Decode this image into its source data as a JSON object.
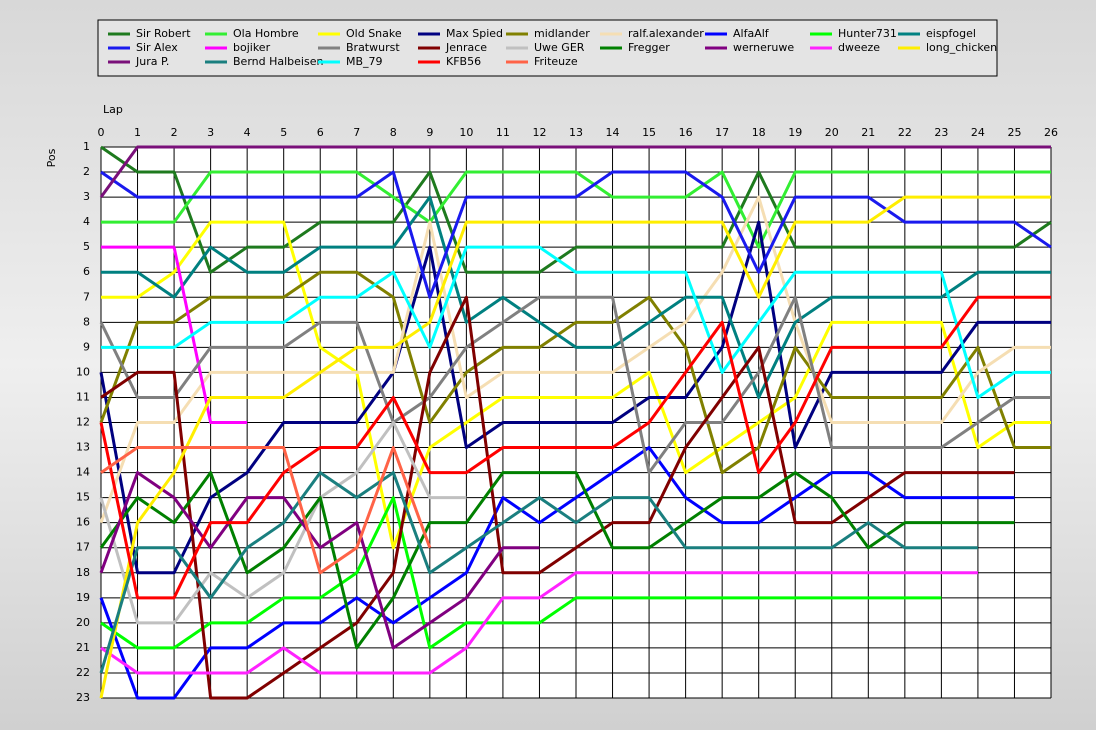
{
  "chart_data": {
    "type": "line",
    "x_label": "Lap",
    "y_label": "Pos",
    "x": [
      0,
      1,
      2,
      3,
      4,
      5,
      6,
      7,
      8,
      9,
      10,
      11,
      12,
      13,
      14,
      15,
      16,
      17,
      18,
      19,
      20,
      21,
      22,
      23,
      24,
      25,
      26
    ],
    "xlim": [
      0,
      26
    ],
    "xticks": [
      0,
      1,
      2,
      3,
      4,
      5,
      6,
      7,
      8,
      9,
      10,
      11,
      12,
      13,
      14,
      15,
      16,
      17,
      18,
      19,
      20,
      21,
      22,
      23,
      24,
      25,
      26
    ],
    "ylim": [
      23,
      1
    ],
    "yticks": [
      1,
      2,
      3,
      4,
      5,
      6,
      7,
      8,
      9,
      10,
      11,
      12,
      13,
      14,
      15,
      16,
      17,
      18,
      19,
      20,
      21,
      22,
      23
    ],
    "grid": true,
    "legend": "top",
    "series": [
      {
        "name": "Sir Robert",
        "color": "#1e7a1e",
        "values": [
          1,
          2,
          2,
          6,
          5,
          5,
          4,
          4,
          4,
          2,
          6,
          6,
          6,
          5,
          5,
          5,
          5,
          5,
          2,
          5,
          5,
          5,
          5,
          5,
          5,
          5,
          4
        ]
      },
      {
        "name": "Ola Hombre",
        "color": "#33ee33",
        "values": [
          4,
          4,
          4,
          2,
          2,
          2,
          2,
          2,
          3,
          4,
          2,
          2,
          2,
          2,
          3,
          3,
          3,
          2,
          5,
          2,
          2,
          2,
          2,
          2,
          2,
          2,
          2
        ]
      },
      {
        "name": "Old Snake",
        "color": "#ffff00",
        "values": [
          7,
          7,
          6,
          4,
          4,
          4,
          9,
          10,
          17,
          13,
          12,
          11,
          11,
          11,
          11,
          10,
          14,
          13,
          12,
          11,
          8,
          8,
          8,
          8,
          13,
          12,
          12
        ]
      },
      {
        "name": "Max Spied",
        "color": "#000080",
        "values": [
          10,
          18,
          18,
          15,
          14,
          12,
          12,
          12,
          10,
          5,
          13,
          12,
          12,
          12,
          12,
          11,
          11,
          9,
          4,
          13,
          10,
          10,
          10,
          10,
          8,
          8,
          8
        ]
      },
      {
        "name": "midlander",
        "color": "#808000",
        "values": [
          12,
          8,
          8,
          7,
          7,
          7,
          6,
          6,
          7,
          12,
          10,
          9,
          9,
          8,
          8,
          7,
          9,
          14,
          13,
          9,
          11,
          11,
          11,
          11,
          9,
          13,
          13
        ]
      },
      {
        "name": "ralf.alexander",
        "color": "#f5deb3",
        "values": [
          16,
          12,
          12,
          10,
          10,
          10,
          10,
          10,
          10,
          4,
          11,
          10,
          10,
          10,
          10,
          9,
          8,
          6,
          3,
          8,
          12,
          12,
          12,
          12,
          10,
          9,
          9
        ]
      },
      {
        "name": "AlfaAlf",
        "color": "#0000ff",
        "values": [
          19,
          23,
          23,
          21,
          21,
          20,
          20,
          19,
          20,
          19,
          18,
          15,
          16,
          15,
          14,
          13,
          15,
          16,
          16,
          15,
          14,
          14,
          15,
          15,
          15,
          15,
          null
        ]
      },
      {
        "name": "Hunter731",
        "color": "#00ff00",
        "values": [
          20,
          21,
          21,
          20,
          20,
          19,
          19,
          18,
          15,
          21,
          20,
          20,
          20,
          19,
          19,
          19,
          19,
          19,
          19,
          19,
          19,
          19,
          19,
          19,
          null,
          null,
          null
        ]
      },
      {
        "name": "eispfogel",
        "color": "#008080",
        "values": [
          6,
          6,
          7,
          5,
          6,
          6,
          5,
          5,
          5,
          3,
          8,
          7,
          8,
          9,
          9,
          8,
          7,
          7,
          11,
          8,
          7,
          7,
          7,
          7,
          6,
          6,
          6
        ]
      },
      {
        "name": "Sir Alex",
        "color": "#1a1aee",
        "values": [
          2,
          3,
          3,
          3,
          3,
          3,
          3,
          3,
          2,
          7,
          3,
          3,
          3,
          3,
          2,
          2,
          2,
          3,
          6,
          3,
          3,
          3,
          4,
          4,
          4,
          4,
          5
        ]
      },
      {
        "name": "bojiker",
        "color": "#ff00ff",
        "values": [
          5,
          5,
          5,
          12,
          12,
          null,
          null,
          null,
          null,
          null,
          null,
          null,
          null,
          null,
          null,
          null,
          null,
          null,
          null,
          null,
          null,
          null,
          null,
          null,
          null,
          null,
          null
        ]
      },
      {
        "name": "Bratwurst",
        "color": "#808080",
        "values": [
          8,
          11,
          11,
          9,
          9,
          9,
          8,
          8,
          12,
          11,
          9,
          8,
          7,
          7,
          7,
          14,
          12,
          12,
          10,
          7,
          13,
          13,
          13,
          13,
          12,
          11,
          11
        ]
      },
      {
        "name": "Jenrace",
        "color": "#800000",
        "values": [
          11,
          10,
          10,
          23,
          23,
          22,
          21,
          20,
          18,
          10,
          7,
          18,
          18,
          17,
          16,
          16,
          13,
          11,
          9,
          16,
          16,
          15,
          14,
          14,
          14,
          14,
          null
        ]
      },
      {
        "name": "Uwe GER",
        "color": "#c0c0c0",
        "values": [
          15,
          20,
          20,
          18,
          19,
          18,
          15,
          14,
          12,
          15,
          15,
          null,
          null,
          null,
          null,
          null,
          null,
          null,
          null,
          null,
          null,
          null,
          null,
          null,
          null,
          null,
          null
        ]
      },
      {
        "name": "Fregger",
        "color": "#008000",
        "values": [
          17,
          15,
          16,
          14,
          18,
          17,
          15,
          21,
          19,
          16,
          16,
          14,
          14,
          14,
          17,
          17,
          16,
          15,
          15,
          14,
          15,
          17,
          16,
          16,
          16,
          16,
          null
        ]
      },
      {
        "name": "werneruwe",
        "color": "#800080",
        "values": [
          18,
          14,
          15,
          17,
          15,
          15,
          17,
          16,
          21,
          20,
          19,
          17,
          17,
          null,
          null,
          null,
          null,
          null,
          null,
          null,
          null,
          null,
          null,
          null,
          null,
          null,
          null
        ]
      },
      {
        "name": "dweeze",
        "color": "#ff22ff",
        "values": [
          21,
          22,
          22,
          22,
          22,
          21,
          22,
          22,
          22,
          22,
          21,
          19,
          19,
          18,
          18,
          18,
          18,
          18,
          18,
          18,
          18,
          18,
          18,
          18,
          18,
          null,
          null
        ]
      },
      {
        "name": "long_chicken",
        "color": "#ffee00",
        "values": [
          23,
          16,
          14,
          11,
          11,
          11,
          10,
          9,
          9,
          8,
          4,
          4,
          4,
          4,
          4,
          4,
          4,
          4,
          7,
          4,
          4,
          4,
          3,
          3,
          3,
          3,
          3
        ]
      },
      {
        "name": "Jura P.",
        "color": "#7a107a",
        "values": [
          3,
          1,
          1,
          1,
          1,
          1,
          1,
          1,
          1,
          1,
          1,
          1,
          1,
          1,
          1,
          1,
          1,
          1,
          1,
          1,
          1,
          1,
          1,
          1,
          1,
          1,
          1
        ]
      },
      {
        "name": "Bernd Halbeisen",
        "color": "#1a7f7f",
        "values": [
          22,
          17,
          17,
          19,
          17,
          16,
          14,
          15,
          14,
          18,
          17,
          16,
          15,
          16,
          15,
          15,
          17,
          17,
          17,
          17,
          17,
          16,
          17,
          17,
          17,
          null,
          null
        ]
      },
      {
        "name": "MB_79",
        "color": "#00ffff",
        "values": [
          9,
          9,
          9,
          8,
          8,
          8,
          7,
          7,
          6,
          9,
          5,
          5,
          5,
          6,
          6,
          6,
          6,
          10,
          8,
          6,
          6,
          6,
          6,
          6,
          11,
          10,
          10
        ]
      },
      {
        "name": "KFB56",
        "color": "#ff0000",
        "values": [
          12,
          19,
          19,
          16,
          16,
          14,
          13,
          13,
          11,
          14,
          14,
          13,
          13,
          13,
          13,
          12,
          10,
          8,
          14,
          12,
          9,
          9,
          9,
          9,
          7,
          7,
          7
        ]
      },
      {
        "name": "Friteuze",
        "color": "#ff6347",
        "values": [
          14,
          13,
          13,
          13,
          13,
          13,
          18,
          17,
          13,
          17,
          null,
          null,
          null,
          null,
          null,
          null,
          null,
          null,
          null,
          null,
          null,
          null,
          null,
          null,
          null,
          null,
          null
        ]
      }
    ]
  }
}
